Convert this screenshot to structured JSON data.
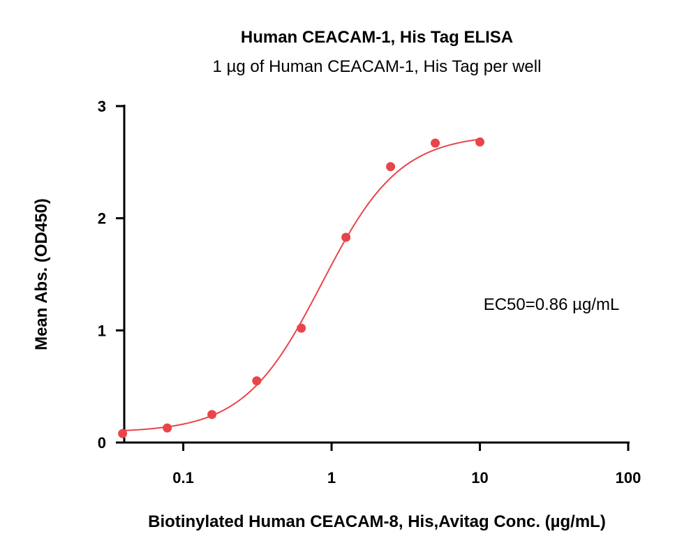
{
  "chart_data": {
    "type": "scatter",
    "title": "Human CEACAM-1, His Tag ELISA",
    "subtitle": "1 µg of Human CEACAM-1, His Tag per well",
    "xlabel": "Biotinylated Human CEACAM-8, His,Avitag Conc. (µg/mL)",
    "ylabel": "Mean Abs. (OD450)",
    "x_scale": "log",
    "xlim": [
      0.04,
      100
    ],
    "ylim": [
      0,
      3
    ],
    "x_ticks": [
      0.1,
      1,
      10,
      100
    ],
    "x_tick_labels": [
      "0.1",
      "1",
      "10",
      "100"
    ],
    "y_ticks": [
      0,
      1,
      2,
      3
    ],
    "y_tick_labels": [
      "0",
      "1",
      "2",
      "3"
    ],
    "grid": false,
    "series": [
      {
        "color": "#e8454a",
        "x": [
          0.039,
          0.078,
          0.156,
          0.313,
          0.625,
          1.25,
          2.5,
          5,
          10
        ],
        "y": [
          0.08,
          0.13,
          0.25,
          0.55,
          1.02,
          1.83,
          2.46,
          2.67,
          2.68
        ],
        "fit": {
          "model": "4PL",
          "bottom": 0.09,
          "top": 2.75,
          "ec50": 0.86,
          "hill": 1.65
        }
      }
    ],
    "annotations": [
      {
        "text": "EC50=0.86 µg/mL"
      }
    ]
  }
}
